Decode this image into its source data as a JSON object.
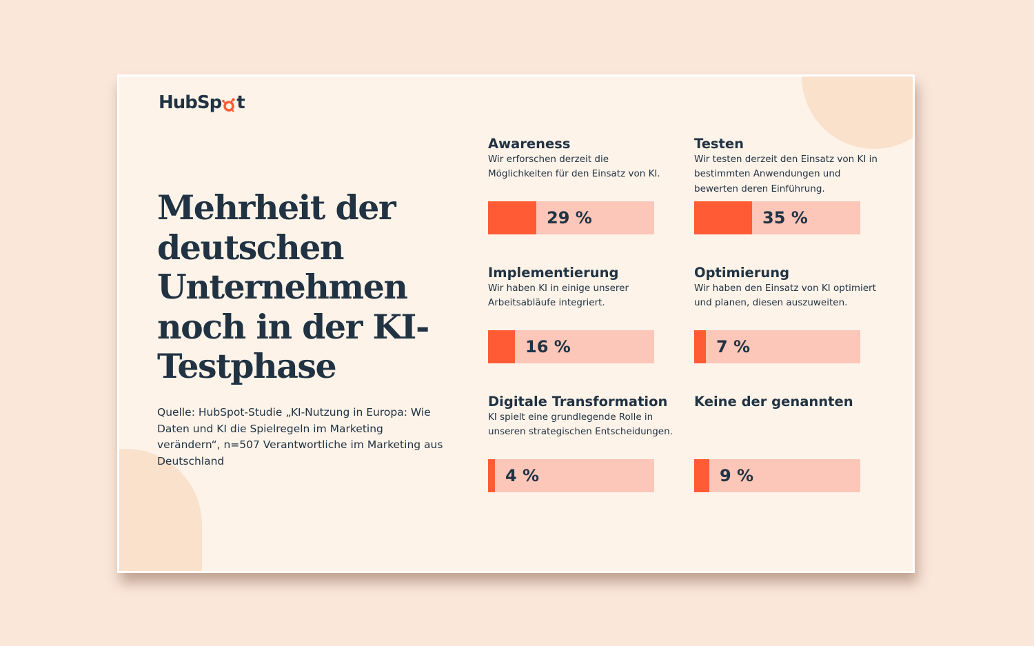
{
  "brand": {
    "logo_text_before": "HubSp",
    "logo_text_after": "t",
    "accent_color": "#ff5c35",
    "track_color": "#fcc6b9",
    "text_color": "#213343",
    "background_color": "#fdf3e9"
  },
  "headline": "Mehrheit der deutschen Unternehmen noch in der KI-Testphase",
  "source": "Quelle: HubSpot-Studie „KI-Nutzung in Europa: Wie Daten und KI die Spielregeln im Marketing verändern“, n=507 Verantwortliche im Marketing aus Deutschland",
  "chart_data": {
    "type": "bar",
    "title": "Mehrheit der deutschen Unternehmen noch in der KI-Testphase",
    "unit": "%",
    "xlim": [
      0,
      100
    ],
    "categories": [
      "Awareness",
      "Testen",
      "Implementierung",
      "Optimierung",
      "Digitale Transformation",
      "Keine der genannten"
    ],
    "values": [
      29,
      35,
      16,
      7,
      4,
      9
    ],
    "items": [
      {
        "category": "Awareness",
        "description": "Wir erforschen derzeit die Möglichkeiten für den Einsatz von KI.",
        "value": 29,
        "label": "29 %"
      },
      {
        "category": "Testen",
        "description": "Wir testen derzeit den Einsatz von KI in bestimmten Anwendungen und bewerten deren Einführung.",
        "value": 35,
        "label": "35 %"
      },
      {
        "category": "Implementierung",
        "description": "Wir haben KI in einige unserer Arbeitsabläufe integriert.",
        "value": 16,
        "label": "16 %"
      },
      {
        "category": "Optimierung",
        "description": "Wir haben den Einsatz von KI optimiert und planen, diesen auszuweiten.",
        "value": 7,
        "label": "7 %"
      },
      {
        "category": "Digitale Transformation",
        "description": "KI spielt eine grundlegende Rolle in unseren strategischen Entscheidungen.",
        "value": 4,
        "label": "4 %"
      },
      {
        "category": "Keine der genannten",
        "description": "",
        "value": 9,
        "label": "9 %"
      }
    ]
  }
}
